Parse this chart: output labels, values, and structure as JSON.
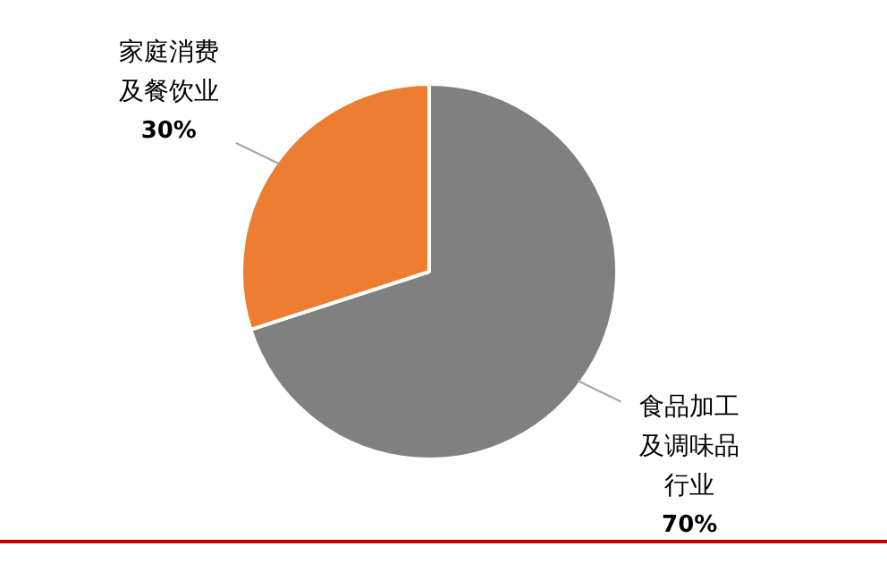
{
  "chart_data": {
    "type": "pie",
    "categories": [
      "食品加工及调味品行业",
      "家庭消费及餐饮业"
    ],
    "values": [
      70,
      30
    ],
    "colors": [
      "#808080",
      "#ed7d31"
    ],
    "value_labels": [
      "70%",
      "30%"
    ],
    "legend": false
  }
}
